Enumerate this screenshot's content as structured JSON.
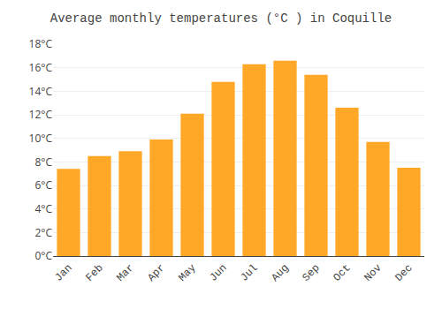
{
  "chart_data": {
    "type": "bar",
    "title": "Average monthly temperatures (°C ) in Coquille",
    "categories": [
      "Jan",
      "Feb",
      "Mar",
      "Apr",
      "May",
      "Jun",
      "Jul",
      "Aug",
      "Sep",
      "Oct",
      "Nov",
      "Dec"
    ],
    "values": [
      7.4,
      8.5,
      8.9,
      9.9,
      12.1,
      14.8,
      16.3,
      16.6,
      15.4,
      12.6,
      9.7,
      7.5
    ],
    "color": "#FFA726",
    "ylim": [
      0,
      18
    ],
    "yticks": [
      {
        "value": 0,
        "label": "0°C"
      },
      {
        "value": 2,
        "label": "2°C"
      },
      {
        "value": 4,
        "label": "4°C"
      },
      {
        "value": 6,
        "label": "6°C"
      },
      {
        "value": 8,
        "label": "8°C"
      },
      {
        "value": 10,
        "label": "10°C"
      },
      {
        "value": 12,
        "label": "12°C"
      },
      {
        "value": 14,
        "label": "14°C"
      },
      {
        "value": 16,
        "label": "16°C"
      },
      {
        "value": 18,
        "label": "18°C"
      }
    ],
    "grid": true
  }
}
